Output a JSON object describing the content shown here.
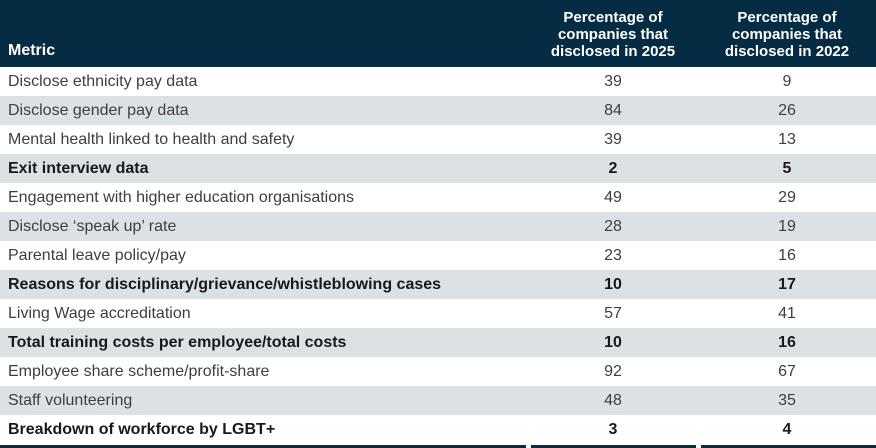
{
  "colors": {
    "header_background": "#052c42",
    "row_alternate_background": "#dce1e5",
    "row_text": "#3e3e3e",
    "bold_row_text": "#191919",
    "header_text": "#ffffff"
  },
  "table": {
    "columns": {
      "metric": "Metric",
      "disclosed_2025": "Percentage of\ncompanies that\ndisclosed in 2025",
      "disclosed_2022": "Percentage of\ncompanies that\ndisclosed in 2022"
    },
    "rows": [
      {
        "metric": "Disclose ethnicity pay data",
        "disclosed_2025": "39",
        "disclosed_2022": "9",
        "bold": false
      },
      {
        "metric": "Disclose gender pay data",
        "disclosed_2025": "84",
        "disclosed_2022": "26",
        "bold": false
      },
      {
        "metric": "Mental health linked to health and safety",
        "disclosed_2025": "39",
        "disclosed_2022": "13",
        "bold": false
      },
      {
        "metric": "Exit interview data",
        "disclosed_2025": "2",
        "disclosed_2022": "5",
        "bold": true
      },
      {
        "metric": "Engagement with higher education organisations",
        "disclosed_2025": "49",
        "disclosed_2022": "29",
        "bold": false
      },
      {
        "metric": "Disclose ‘speak up’ rate",
        "disclosed_2025": "28",
        "disclosed_2022": "19",
        "bold": false
      },
      {
        "metric": "Parental leave policy/pay",
        "disclosed_2025": "23",
        "disclosed_2022": "16",
        "bold": false
      },
      {
        "metric": "Reasons for disciplinary/grievance/whistleblowing cases",
        "disclosed_2025": "10",
        "disclosed_2022": "17",
        "bold": true
      },
      {
        "metric": "Living Wage accreditation",
        "disclosed_2025": "57",
        "disclosed_2022": "41",
        "bold": false
      },
      {
        "metric": "Total training costs per employee/total costs",
        "disclosed_2025": "10",
        "disclosed_2022": "16",
        "bold": true
      },
      {
        "metric": "Employee share scheme/profit-share",
        "disclosed_2025": "92",
        "disclosed_2022": "67",
        "bold": false
      },
      {
        "metric": "Staff volunteering",
        "disclosed_2025": "48",
        "disclosed_2022": "35",
        "bold": false
      },
      {
        "metric": "Breakdown of workforce by LGBT+",
        "disclosed_2025": "3",
        "disclosed_2022": "4",
        "bold": true
      }
    ]
  }
}
